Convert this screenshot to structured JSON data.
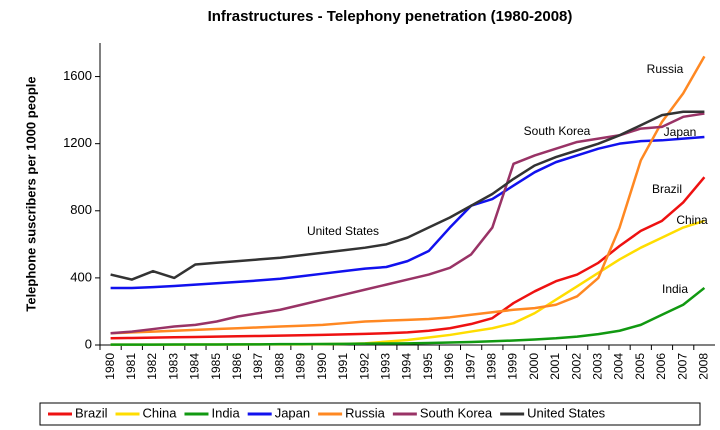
{
  "chart_data": {
    "type": "line",
    "title": "Infrastructures - Telephony penetration (1980-2008)",
    "y_label": "Telephone suscribers per 1000 people",
    "categories": [
      "1980",
      "1981",
      "1982",
      "1983",
      "1984",
      "1985",
      "1986",
      "1987",
      "1988",
      "1989",
      "1990",
      "1991",
      "1992",
      "1993",
      "1994",
      "1995",
      "1996",
      "1997",
      "1998",
      "1999",
      "2000",
      "2001",
      "2002",
      "2003",
      "2004",
      "2005",
      "2006",
      "2007",
      "2008"
    ],
    "ylim": [
      0,
      1800
    ],
    "yticks": [
      0,
      400,
      800,
      1200,
      1600
    ],
    "grid": false,
    "legend": "bottom",
    "series": [
      {
        "name": "Brazil",
        "color": "#ee1111",
        "values": [
          40,
          42,
          44,
          46,
          48,
          50,
          52,
          54,
          56,
          58,
          60,
          63,
          66,
          70,
          75,
          85,
          100,
          125,
          160,
          250,
          320,
          380,
          420,
          490,
          590,
          680,
          740,
          850,
          1000
        ]
      },
      {
        "name": "China",
        "color": "#ffdd00",
        "values": [
          2,
          2,
          2,
          2,
          3,
          3,
          3,
          4,
          4,
          4,
          5,
          7,
          10,
          20,
          30,
          45,
          60,
          80,
          100,
          130,
          190,
          270,
          350,
          430,
          510,
          580,
          640,
          700,
          740
        ]
      },
      {
        "name": "India",
        "color": "#119911",
        "values": [
          2,
          2,
          2,
          3,
          3,
          3,
          4,
          4,
          5,
          5,
          6,
          7,
          8,
          9,
          10,
          12,
          15,
          18,
          22,
          27,
          33,
          40,
          50,
          65,
          85,
          120,
          180,
          240,
          340
        ]
      },
      {
        "name": "Japan",
        "color": "#1111ee",
        "values": [
          340,
          340,
          345,
          352,
          360,
          368,
          376,
          385,
          395,
          410,
          425,
          440,
          455,
          465,
          500,
          560,
          700,
          830,
          870,
          950,
          1030,
          1090,
          1130,
          1170,
          1200,
          1215,
          1220,
          1230,
          1240
        ]
      },
      {
        "name": "Russia",
        "color": "#ff8822",
        "values": [
          70,
          75,
          80,
          85,
          90,
          95,
          100,
          105,
          110,
          115,
          120,
          130,
          140,
          145,
          150,
          155,
          165,
          180,
          195,
          210,
          220,
          240,
          290,
          400,
          700,
          1100,
          1330,
          1500,
          1720
        ]
      },
      {
        "name": "South Korea",
        "color": "#993366",
        "values": [
          70,
          80,
          95,
          110,
          120,
          140,
          170,
          190,
          210,
          240,
          270,
          300,
          330,
          360,
          390,
          420,
          460,
          540,
          700,
          1080,
          1130,
          1170,
          1210,
          1230,
          1250,
          1290,
          1300,
          1360,
          1380
        ]
      },
      {
        "name": "United States",
        "color": "#333333",
        "values": [
          420,
          390,
          440,
          400,
          480,
          490,
          500,
          510,
          520,
          535,
          550,
          565,
          580,
          600,
          640,
          700,
          760,
          830,
          900,
          990,
          1070,
          1120,
          1160,
          1200,
          1250,
          1310,
          1370,
          1390,
          1390
        ]
      }
    ]
  }
}
